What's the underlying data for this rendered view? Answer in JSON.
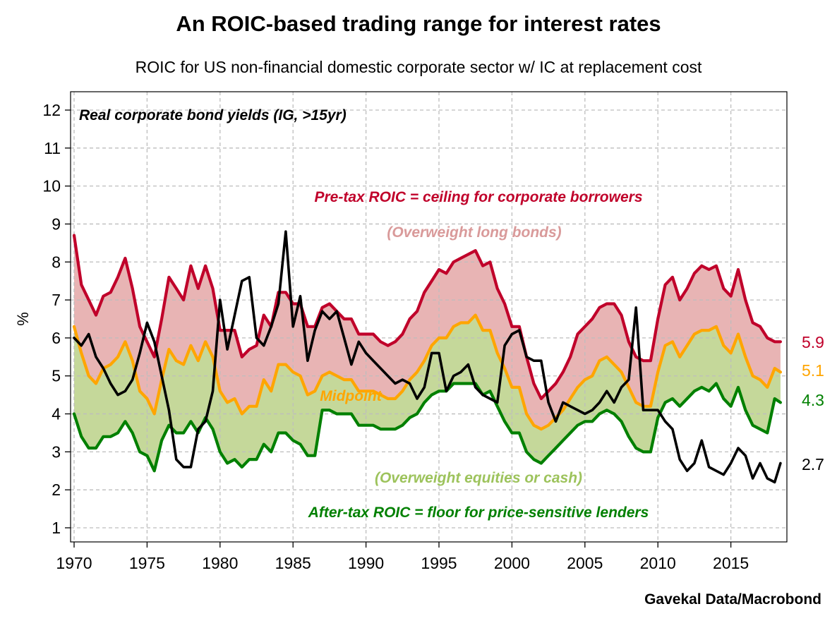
{
  "title": "An ROIC-based trading range for interest rates",
  "subtitle": "ROIC for US non-financial domestic corporate sector w/ IC at replacement cost",
  "source": "Gavekal Data/Macrobond",
  "chart_data": {
    "type": "line",
    "ylabel": "%",
    "xlim": [
      1970,
      2018.5
    ],
    "ylim": [
      0.7,
      12.4
    ],
    "grid": true,
    "yticks": [
      1,
      2,
      3,
      4,
      5,
      6,
      7,
      8,
      9,
      10,
      11,
      12
    ],
    "xticks": [
      1970,
      1975,
      1980,
      1985,
      1990,
      1995,
      2000,
      2005,
      2010,
      2015
    ],
    "colors": {
      "pretax": "#c0002a",
      "midpoint": "#ffa500",
      "aftertax": "#008000",
      "bond": "#000000",
      "upper_band": "#e8b4b4",
      "lower_band": "#c5d89a",
      "upper_label": "#d99a9a",
      "lower_label": "#9dc35c"
    },
    "annotations": {
      "bond_label": "Real corporate bond yields (IG, >15yr)",
      "pretax_label": "Pre-tax ROIC = ceiling for corporate borrowers",
      "upper_zone_label": "(Overweight long bonds)",
      "midpoint_label": "Midpoint",
      "lower_zone_label": "(Overweight equities or cash)",
      "aftertax_label": "After-tax ROIC = floor for price-sensitive lenders"
    },
    "end_labels": {
      "pretax": "5.9",
      "midpoint": "5.1",
      "aftertax": "4.3",
      "bond": "2.7"
    },
    "x": [
      1970.0,
      1970.5,
      1971.0,
      1971.5,
      1972.0,
      1972.5,
      1973.0,
      1973.5,
      1974.0,
      1974.5,
      1975.0,
      1975.5,
      1976.0,
      1976.5,
      1977.0,
      1977.5,
      1978.0,
      1978.5,
      1979.0,
      1979.5,
      1980.0,
      1980.5,
      1981.0,
      1981.5,
      1982.0,
      1982.5,
      1983.0,
      1983.5,
      1984.0,
      1984.5,
      1985.0,
      1985.5,
      1986.0,
      1986.5,
      1987.0,
      1987.5,
      1988.0,
      1988.5,
      1989.0,
      1989.5,
      1990.0,
      1990.5,
      1991.0,
      1991.5,
      1992.0,
      1992.5,
      1993.0,
      1993.5,
      1994.0,
      1994.5,
      1995.0,
      1995.5,
      1996.0,
      1996.5,
      1997.0,
      1997.5,
      1998.0,
      1998.5,
      1999.0,
      1999.5,
      2000.0,
      2000.5,
      2001.0,
      2001.5,
      2002.0,
      2002.5,
      2003.0,
      2003.5,
      2004.0,
      2004.5,
      2005.0,
      2005.5,
      2006.0,
      2006.5,
      2007.0,
      2007.5,
      2008.0,
      2008.5,
      2009.0,
      2009.5,
      2010.0,
      2010.5,
      2011.0,
      2011.5,
      2012.0,
      2012.5,
      2013.0,
      2013.5,
      2014.0,
      2014.5,
      2015.0,
      2015.5,
      2016.0,
      2016.5,
      2017.0,
      2017.5,
      2018.0,
      2018.4
    ],
    "series": [
      {
        "name": "Pre-tax ROIC = ceiling for corporate borrowers",
        "key": "pretax",
        "values": [
          8.7,
          7.4,
          7.0,
          6.6,
          7.1,
          7.2,
          7.6,
          8.1,
          7.3,
          6.3,
          5.9,
          5.5,
          6.5,
          7.6,
          7.3,
          7.0,
          7.9,
          7.3,
          7.9,
          7.3,
          6.2,
          6.2,
          6.2,
          5.5,
          5.7,
          5.8,
          6.6,
          6.3,
          7.2,
          7.2,
          6.9,
          6.9,
          6.3,
          6.3,
          6.8,
          6.9,
          6.7,
          6.5,
          6.5,
          6.1,
          6.1,
          6.1,
          5.9,
          5.8,
          5.9,
          6.1,
          6.5,
          6.7,
          7.2,
          7.5,
          7.8,
          7.7,
          8.0,
          8.1,
          8.2,
          8.3,
          7.9,
          8.0,
          7.3,
          6.9,
          6.3,
          6.3,
          5.5,
          4.8,
          4.4,
          4.6,
          4.8,
          5.1,
          5.5,
          6.1,
          6.3,
          6.5,
          6.8,
          6.9,
          6.9,
          6.6,
          5.9,
          5.5,
          5.4,
          5.4,
          6.5,
          7.4,
          7.6,
          7.0,
          7.3,
          7.7,
          7.9,
          7.8,
          7.9,
          7.3,
          7.1,
          7.8,
          7.0,
          6.4,
          6.3,
          6.0,
          5.9,
          5.9
        ]
      },
      {
        "name": "Midpoint",
        "key": "midpoint",
        "values": [
          6.3,
          5.6,
          5.0,
          4.8,
          5.2,
          5.3,
          5.5,
          5.9,
          5.4,
          4.6,
          4.4,
          4.0,
          4.9,
          5.7,
          5.4,
          5.3,
          5.8,
          5.4,
          5.9,
          5.5,
          4.6,
          4.3,
          4.4,
          4.0,
          4.2,
          4.2,
          4.9,
          4.6,
          5.3,
          5.3,
          5.1,
          5.0,
          4.5,
          4.6,
          5.0,
          5.1,
          5.0,
          4.9,
          4.9,
          4.6,
          4.6,
          4.6,
          4.5,
          4.4,
          4.4,
          4.6,
          4.9,
          5.1,
          5.4,
          5.8,
          6.0,
          6.0,
          6.3,
          6.4,
          6.4,
          6.6,
          6.2,
          6.2,
          5.6,
          5.2,
          4.7,
          4.7,
          4.0,
          3.7,
          3.6,
          3.7,
          3.9,
          4.1,
          4.4,
          4.7,
          4.9,
          5.0,
          5.4,
          5.5,
          5.3,
          5.1,
          4.7,
          4.3,
          4.2,
          4.2,
          5.1,
          5.8,
          5.9,
          5.5,
          5.8,
          6.1,
          6.2,
          6.2,
          6.3,
          5.8,
          5.6,
          6.1,
          5.5,
          5.0,
          4.9,
          4.7,
          5.2,
          5.1
        ]
      },
      {
        "name": "After-tax ROIC = floor for price-sensitive lenders",
        "key": "aftertax",
        "values": [
          4.0,
          3.4,
          3.1,
          3.1,
          3.4,
          3.4,
          3.5,
          3.8,
          3.5,
          3.0,
          2.9,
          2.5,
          3.3,
          3.7,
          3.5,
          3.5,
          3.8,
          3.5,
          3.9,
          3.6,
          3.0,
          2.7,
          2.8,
          2.6,
          2.8,
          2.8,
          3.2,
          3.0,
          3.5,
          3.5,
          3.3,
          3.2,
          2.9,
          2.9,
          4.1,
          4.1,
          4.0,
          4.0,
          4.0,
          3.7,
          3.7,
          3.7,
          3.6,
          3.6,
          3.6,
          3.7,
          3.9,
          4.0,
          4.3,
          4.5,
          4.6,
          4.6,
          4.8,
          4.8,
          4.8,
          4.8,
          4.5,
          4.6,
          4.2,
          3.8,
          3.5,
          3.5,
          3.0,
          2.8,
          2.7,
          2.9,
          3.1,
          3.3,
          3.5,
          3.7,
          3.8,
          3.8,
          4.0,
          4.1,
          4.0,
          3.8,
          3.4,
          3.1,
          3.0,
          3.0,
          3.9,
          4.3,
          4.4,
          4.2,
          4.4,
          4.6,
          4.7,
          4.6,
          4.8,
          4.4,
          4.2,
          4.7,
          4.1,
          3.7,
          3.6,
          3.5,
          4.4,
          4.3
        ]
      },
      {
        "name": "Real corporate bond yields (IG, >15yr)",
        "key": "bond",
        "values": [
          6.0,
          5.8,
          6.1,
          5.5,
          5.2,
          4.8,
          4.5,
          4.6,
          4.9,
          5.6,
          6.4,
          5.9,
          5.0,
          4.1,
          2.8,
          2.6,
          2.6,
          3.6,
          3.8,
          4.6,
          7.0,
          5.7,
          6.6,
          7.5,
          7.6,
          6.0,
          5.8,
          6.3,
          6.9,
          8.8,
          6.3,
          7.1,
          5.4,
          6.2,
          6.7,
          6.5,
          6.7,
          6.0,
          5.3,
          5.9,
          5.6,
          5.4,
          5.2,
          5.0,
          4.8,
          4.9,
          4.8,
          4.4,
          4.7,
          5.6,
          5.6,
          4.6,
          5.0,
          5.1,
          5.3,
          4.7,
          4.5,
          4.4,
          4.3,
          5.8,
          6.1,
          6.2,
          5.5,
          5.4,
          5.4,
          4.3,
          3.8,
          4.3,
          4.2,
          4.1,
          4.0,
          4.1,
          4.3,
          4.6,
          4.3,
          4.7,
          4.9,
          6.8,
          4.1,
          4.1,
          4.1,
          3.8,
          3.6,
          2.8,
          2.5,
          2.7,
          3.3,
          2.6,
          2.5,
          2.4,
          2.7,
          3.1,
          2.9,
          2.3,
          2.7,
          2.3,
          2.2,
          2.7
        ]
      }
    ]
  }
}
